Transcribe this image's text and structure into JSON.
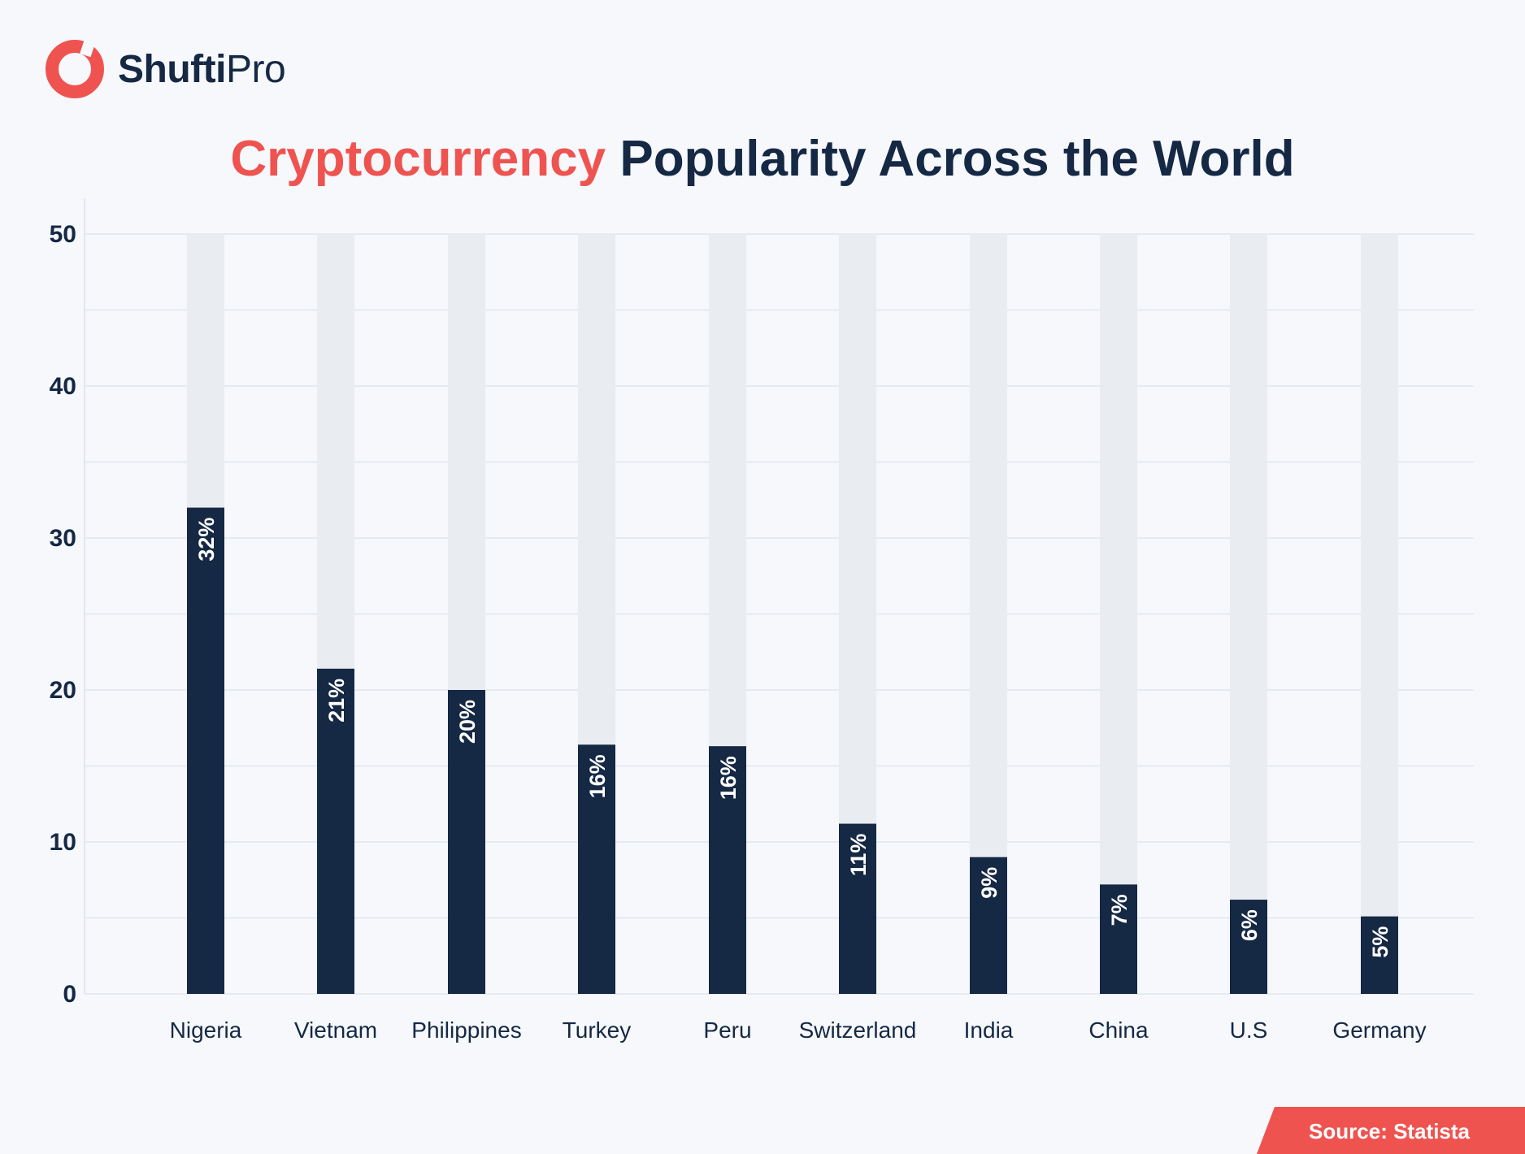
{
  "brand": {
    "name_bold": "Shufti",
    "name_light": "Pro",
    "accent_color": "#ef5350",
    "dark_color": "#152844",
    "logo_icon": "shufti-pro-logo-icon"
  },
  "title": {
    "accent": "Cryptocurrency",
    "rest": " Popularity Across the World"
  },
  "source": "Source: Statista",
  "chart_data": {
    "type": "bar",
    "title": "Cryptocurrency Popularity Across the World",
    "xlabel": "",
    "ylabel": "",
    "categories": [
      "Nigeria",
      "Vietnam",
      "Philippines",
      "Turkey",
      "Peru",
      "Switzerland",
      "India",
      "China",
      "U.S",
      "Germany"
    ],
    "values": [
      32,
      21.4,
      20,
      16.4,
      16.3,
      11.2,
      9,
      7.2,
      6.2,
      5.1
    ],
    "data_labels": [
      "32%",
      "21%",
      "20%",
      "16%",
      "16%",
      "11%",
      "9%",
      "7%",
      "6%",
      "5%"
    ],
    "ylim": [
      0,
      50
    ],
    "yticks": [
      0,
      10,
      20,
      30,
      40,
      50
    ],
    "grid": true,
    "bar_color": "#152844",
    "track_color": "#e9ecf1",
    "grid_color": "#dde2ea"
  }
}
